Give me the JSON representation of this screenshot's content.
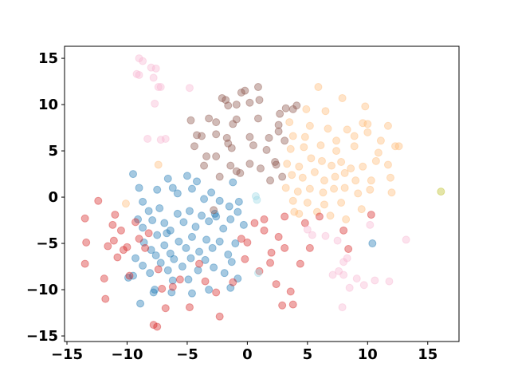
{
  "chart_data": {
    "type": "scatter",
    "alpha": 0.4,
    "xlim": [
      -15.2,
      17.6
    ],
    "ylim": [
      -15.6,
      16.3
    ],
    "xticks": [
      {
        "value": -15,
        "label": "−15"
      },
      {
        "value": -10,
        "label": "−10"
      },
      {
        "value": -5,
        "label": "−5"
      },
      0,
      5,
      10,
      15
    ],
    "yticks": [
      {
        "value": -15,
        "label": "−15"
      },
      {
        "value": -10,
        "label": "−10"
      },
      {
        "value": -5,
        "label": "−5"
      },
      0,
      5,
      10,
      15
    ],
    "series": [
      {
        "color": "#1f77b4",
        "x": [
          -9.5,
          -9,
          -8.7,
          -8.2,
          -7.5,
          -7.3,
          -6.6,
          -6.2,
          -5.8,
          -5,
          -4.6,
          -4.2,
          -3.6,
          -3,
          -2.3,
          -1.5,
          -1.2,
          -0.8,
          -9.1,
          -8.7,
          -7.9,
          -7.5,
          -6.9,
          -6.4,
          -5.8,
          -5.3,
          -4.8,
          -4.3,
          -3.8,
          -3.2,
          -2.6,
          -2,
          -1.4,
          -0.3,
          -8.6,
          -8,
          -7.6,
          -6.9,
          -6.4,
          -5.7,
          -5.1,
          -4.6,
          -4,
          -3.4,
          -2.9,
          -2.3,
          -1.6,
          -1,
          -9.3,
          -8.7,
          -8.1,
          -7.2,
          -6.6,
          -6.1,
          -5.4,
          -4.7,
          -4.1,
          -3.5,
          -2.8,
          -1.9,
          -1.3,
          -0.8,
          -9.9,
          -9.5,
          -8.9,
          -7.8,
          -7.7,
          -6.3,
          -6.2,
          -4.9,
          -4.6,
          -3.2,
          -1.4,
          -0.7,
          10.4,
          -6.7,
          -2.7
        ],
        "y": [
          2.5,
          1,
          -0.5,
          -1.5,
          0.8,
          -1.2,
          2,
          1,
          0.4,
          2.3,
          0.9,
          1.7,
          -0.2,
          0.5,
          -0.4,
          -1,
          1.6,
          -1.6,
          -2.4,
          -3.3,
          -2.5,
          -4.1,
          -2.8,
          -3.6,
          -1.8,
          -2.7,
          -1.5,
          -3.2,
          -2,
          -2.6,
          -2.1,
          -3.4,
          -2.4,
          -3,
          -4.9,
          -5.7,
          -6.3,
          -5.2,
          -6.1,
          -4.8,
          -5.5,
          -4.3,
          -5.9,
          -4.6,
          -5.5,
          -4.8,
          -6.2,
          -5,
          -6.6,
          -7.4,
          -8.2,
          -7.1,
          -7.9,
          -6.7,
          -7.5,
          -6.6,
          -7.9,
          -6.8,
          -7.6,
          -8.2,
          -7,
          -8.8,
          -8.7,
          -8.5,
          -11.5,
          -10.3,
          -10,
          -10.3,
          -9,
          -8.9,
          -10.4,
          -10,
          -9.8,
          -0.5,
          -5,
          -3.9,
          -1.8
        ]
      },
      {
        "color": "#ffbb78",
        "x": [
          5.9,
          7.9,
          9.8,
          4.9,
          6.5,
          3.5,
          5.2,
          6.7,
          8.3,
          9.6,
          10,
          11.7,
          3.8,
          4.8,
          7.4,
          8.9,
          10,
          11.1,
          12.3,
          12.6,
          3.6,
          4.7,
          6.1,
          7.4,
          8.9,
          10.9,
          3.3,
          4.3,
          5.3,
          6.2,
          7,
          7.8,
          8.6,
          9.6,
          10.7,
          11.7,
          3.7,
          4.6,
          5.6,
          6.4,
          7.3,
          8.1,
          9,
          10.3,
          11.9,
          3.2,
          4.2,
          5.2,
          6.3,
          7.2,
          8.1,
          9.2,
          10.2,
          12,
          3.8,
          5,
          6.4,
          7.8,
          4.3,
          5.8,
          6.9,
          3.9,
          8.2,
          9.5,
          -10.1,
          -7.4
        ],
        "y": [
          11.9,
          10.7,
          9.8,
          9.5,
          9.3,
          8.1,
          7.7,
          7.4,
          7.3,
          8,
          7.9,
          7.7,
          6.6,
          6.5,
          6.1,
          6.6,
          7,
          6.1,
          5.5,
          5.5,
          5.2,
          5.4,
          5.6,
          5,
          5.5,
          4.8,
          3.6,
          3.3,
          4.2,
          3.9,
          3.4,
          3.8,
          3.1,
          3.3,
          3.9,
          3.5,
          2.4,
          2.1,
          2.7,
          1.8,
          2.2,
          2.6,
          1.8,
          1.8,
          2.1,
          1,
          0.6,
          0.9,
          0.5,
          0.9,
          1,
          0.4,
          0.8,
          0.5,
          -0.4,
          -0.6,
          -0.8,
          -0.6,
          -1.8,
          -1.6,
          -2,
          -1.6,
          -2.4,
          -1.3,
          -0.7,
          3.5
        ]
      },
      {
        "color": "#8c564b",
        "x": [
          -0.5,
          -0.2,
          0.9,
          -1.8,
          -2.1,
          -1.6,
          -0.9,
          0.2,
          1,
          3.2,
          4.1,
          3.8,
          -4.7,
          -3.2,
          -2.6,
          -0.9,
          -1.2,
          0.9,
          2.7,
          2.6,
          -4.2,
          -3.8,
          -2.6,
          -1.7,
          0.2,
          1.8,
          2.6,
          3.1,
          -4.4,
          -3.4,
          -1.6,
          -1.3,
          0.5,
          1.6,
          -3.6,
          -2.6,
          -1.4,
          -0.9,
          0.2,
          1.1,
          2.3,
          -0.6,
          -2.3,
          1.9,
          2.4,
          2.9,
          -2.8
        ],
        "y": [
          11.3,
          11.5,
          11.9,
          10.5,
          10.7,
          9.9,
          10,
          10.2,
          10.5,
          9.6,
          9.9,
          9.5,
          8.3,
          8.5,
          8.1,
          8.4,
          7.9,
          8.5,
          9,
          7.8,
          6.7,
          6.6,
          6.8,
          6.4,
          6.5,
          6.4,
          7.1,
          6.1,
          5.5,
          4.4,
          5.8,
          5.3,
          5.6,
          5.1,
          3.4,
          4.4,
          3.4,
          2.8,
          3.6,
          3.1,
          3.8,
          2.6,
          2.2,
          1.8,
          3.5,
          2.2,
          -1.4
        ]
      },
      {
        "color": "#d62728",
        "x": [
          -13.5,
          -13.4,
          -13.5,
          -12.4,
          -11.8,
          -11.9,
          -11.6,
          -11.2,
          -11,
          -11.1,
          -10.8,
          -10.5,
          -10.3,
          -10,
          -9.8,
          -9.3,
          -9,
          -8.5,
          -8.2,
          -7.8,
          -7.5,
          -7.4,
          -7.1,
          -6.8,
          -6.2,
          -5.6,
          -4.8,
          -4,
          -3.5,
          -2.6,
          -2.3,
          -1.2,
          -0.2,
          0,
          0.6,
          1.4,
          1.4,
          1.9,
          2.4,
          2.6,
          3.1,
          3.1,
          2.9,
          3.6,
          3.8,
          4.4,
          4.8,
          5.2,
          6,
          8,
          8.4,
          10.3,
          2,
          -0.5,
          1
        ],
        "y": [
          -2.3,
          -4.9,
          -7.2,
          -0.4,
          -11,
          -8.8,
          -5.3,
          -3,
          -1.9,
          -4.7,
          -6.5,
          -3.6,
          -5.7,
          -5.4,
          -8.5,
          -2.7,
          -4.5,
          -5.5,
          -3.9,
          -13.8,
          -14,
          -7.8,
          -9.9,
          -12,
          -9.7,
          -8.9,
          -11.9,
          -7.2,
          -9.1,
          -10.3,
          -12.9,
          -9.2,
          -6.7,
          -4.9,
          -2.8,
          -2.4,
          -3.6,
          -7.1,
          -9.4,
          -4.3,
          -2.1,
          -5.5,
          -11.7,
          -10.2,
          -11.6,
          -7.2,
          -2.8,
          -5.5,
          -2.1,
          -3.6,
          -5.6,
          -1.9,
          -6,
          -4.5,
          -8
        ]
      },
      {
        "color": "#f7b6d2",
        "x": [
          -9,
          -8.7,
          -8,
          -7.6,
          -9.2,
          -9,
          -7.8,
          -7.4,
          -7.2,
          -7.7,
          -8.3,
          -7.2,
          -6.8,
          -4.8,
          6.5,
          7.5,
          8,
          8.3,
          7.6,
          8,
          7.1,
          8.5,
          9.1,
          9.7,
          10.6,
          11.8,
          13.2,
          7.9,
          10.2,
          5,
          5.4
        ],
        "y": [
          15,
          14.7,
          14,
          13.9,
          13.3,
          13.2,
          12.9,
          11.9,
          11.9,
          10.1,
          6.3,
          6.2,
          6.3,
          11.8,
          -4.2,
          -4.7,
          -7,
          -6.6,
          -8,
          -8.4,
          -8.4,
          -9.8,
          -8.8,
          -9.5,
          -9,
          -9.1,
          -4.6,
          -11.9,
          -3,
          -3.5,
          -4.1
        ]
      },
      {
        "color": "#9edae5",
        "x": [
          0.8,
          0.7,
          0.9
        ],
        "y": [
          -0.3,
          0.1,
          -8.2
        ]
      },
      {
        "color": "#bcbd22",
        "x": [
          16.1
        ],
        "y": [
          0.6
        ]
      }
    ]
  }
}
